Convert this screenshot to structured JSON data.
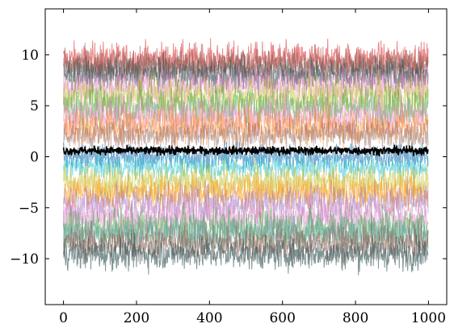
{
  "chart_data": {
    "type": "line",
    "title": "",
    "xlabel": "",
    "ylabel": "",
    "xlim": [
      -50,
      1050
    ],
    "ylim": [
      -14.5,
      14.5
    ],
    "x_ticks": [
      0,
      200,
      400,
      600,
      800,
      1000
    ],
    "x_tick_labels": [
      "0",
      "200",
      "400",
      "600",
      "800",
      "1000"
    ],
    "y_ticks": [
      -10,
      -5,
      0,
      5,
      10
    ],
    "y_tick_labels": [
      "−10",
      "−5",
      "0",
      "5",
      "10"
    ],
    "grid": false,
    "legend": "none",
    "n_points": 1000,
    "series": [
      {
        "mean": 9.5,
        "amplitude": 1.4,
        "color": "#d62728",
        "opacity": 0.55
      },
      {
        "mean": 8.5,
        "amplitude": 1.2,
        "color": "#7f7f7f",
        "opacity": 0.5
      },
      {
        "mean": 9.0,
        "amplitude": 1.3,
        "color": "#8c564b",
        "opacity": 0.55
      },
      {
        "mean": 8.0,
        "amplitude": 1.3,
        "color": "#2f4f4f",
        "opacity": 0.55
      },
      {
        "mean": 7.0,
        "amplitude": 1.5,
        "color": "#e377c2",
        "opacity": 0.45
      },
      {
        "mean": 6.0,
        "amplitude": 1.6,
        "color": "#bcbd22",
        "opacity": 0.45
      },
      {
        "mean": 5.0,
        "amplitude": 1.6,
        "color": "#2ca02c",
        "opacity": 0.45
      },
      {
        "mean": 4.0,
        "amplitude": 1.7,
        "color": "#e377c2",
        "opacity": 0.45
      },
      {
        "mean": 3.0,
        "amplitude": 1.5,
        "color": "#ff7f0e",
        "opacity": 0.45
      },
      {
        "mean": 2.2,
        "amplitude": 1.2,
        "color": "#8c564b",
        "opacity": 0.45
      },
      {
        "mean": 0.0,
        "amplitude": 1.0,
        "color": "#1f77b4",
        "opacity": 0.6
      },
      {
        "mean": -1.0,
        "amplitude": 1.0,
        "color": "#17becf",
        "opacity": 0.5
      },
      {
        "mean": -2.5,
        "amplitude": 1.5,
        "color": "#bcbd22",
        "opacity": 0.5
      },
      {
        "mean": -3.5,
        "amplitude": 1.4,
        "color": "#ff9f1a",
        "opacity": 0.6
      },
      {
        "mean": -4.5,
        "amplitude": 1.6,
        "color": "#9467bd",
        "opacity": 0.45
      },
      {
        "mean": -6.0,
        "amplitude": 1.6,
        "color": "#e377c2",
        "opacity": 0.45
      },
      {
        "mean": -7.0,
        "amplitude": 1.6,
        "color": "#2ca02c",
        "opacity": 0.45
      },
      {
        "mean": -7.5,
        "amplitude": 1.5,
        "color": "#5f9ea0",
        "opacity": 0.55
      },
      {
        "mean": -8.5,
        "amplitude": 1.4,
        "color": "#8c564b",
        "opacity": 0.55
      },
      {
        "mean": -9.5,
        "amplitude": 1.3,
        "color": "#2f4f4f",
        "opacity": 0.6
      },
      {
        "mean": 0.6,
        "amplitude": 0.35,
        "color": "#000000",
        "opacity": 1.0
      }
    ]
  }
}
